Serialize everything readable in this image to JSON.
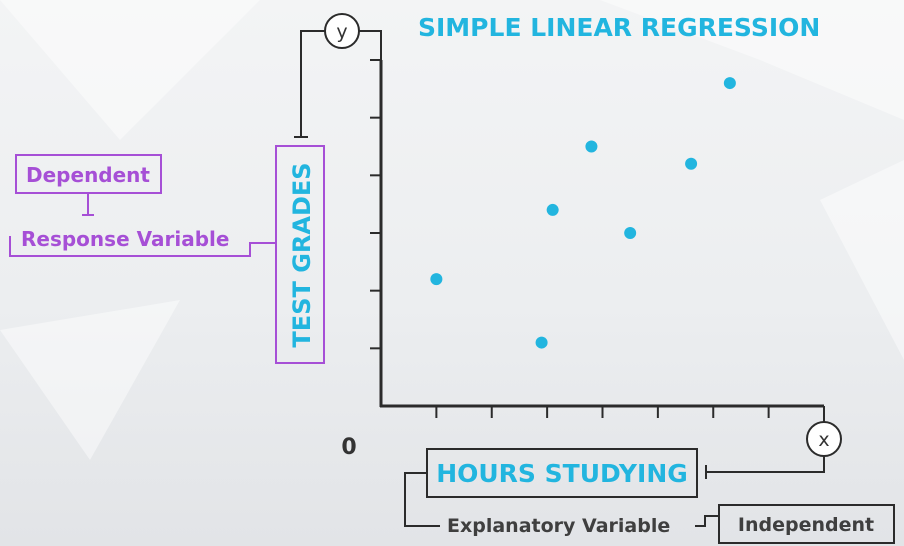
{
  "title": "SIMPLE LINEAR REGRESSION",
  "axes": {
    "y_letter": "y",
    "x_letter": "x",
    "origin": "0",
    "y_label": "TEST GRADES",
    "x_label": "HOURS STUDYING"
  },
  "annotations": {
    "dependent": "Dependent",
    "response_variable": "Response Variable",
    "explanatory_variable": "Explanatory Variable",
    "independent": "Independent"
  },
  "colors": {
    "accent": "#22b5df",
    "purple": "#a64fd6",
    "axis": "#2b2b2b",
    "dot": "#22b5df"
  },
  "chart_data": {
    "type": "scatter",
    "title": "SIMPLE LINEAR REGRESSION",
    "xlabel": "HOURS STUDYING",
    "ylabel": "TEST GRADES",
    "xlim": [
      0,
      8
    ],
    "ylim": [
      0,
      6
    ],
    "grid": false,
    "points": [
      {
        "x": 1.0,
        "y": 2.2
      },
      {
        "x": 2.9,
        "y": 1.1
      },
      {
        "x": 3.1,
        "y": 3.4
      },
      {
        "x": 3.8,
        "y": 4.5
      },
      {
        "x": 4.5,
        "y": 3.0
      },
      {
        "x": 5.6,
        "y": 4.2
      },
      {
        "x": 6.3,
        "y": 5.6
      }
    ]
  }
}
